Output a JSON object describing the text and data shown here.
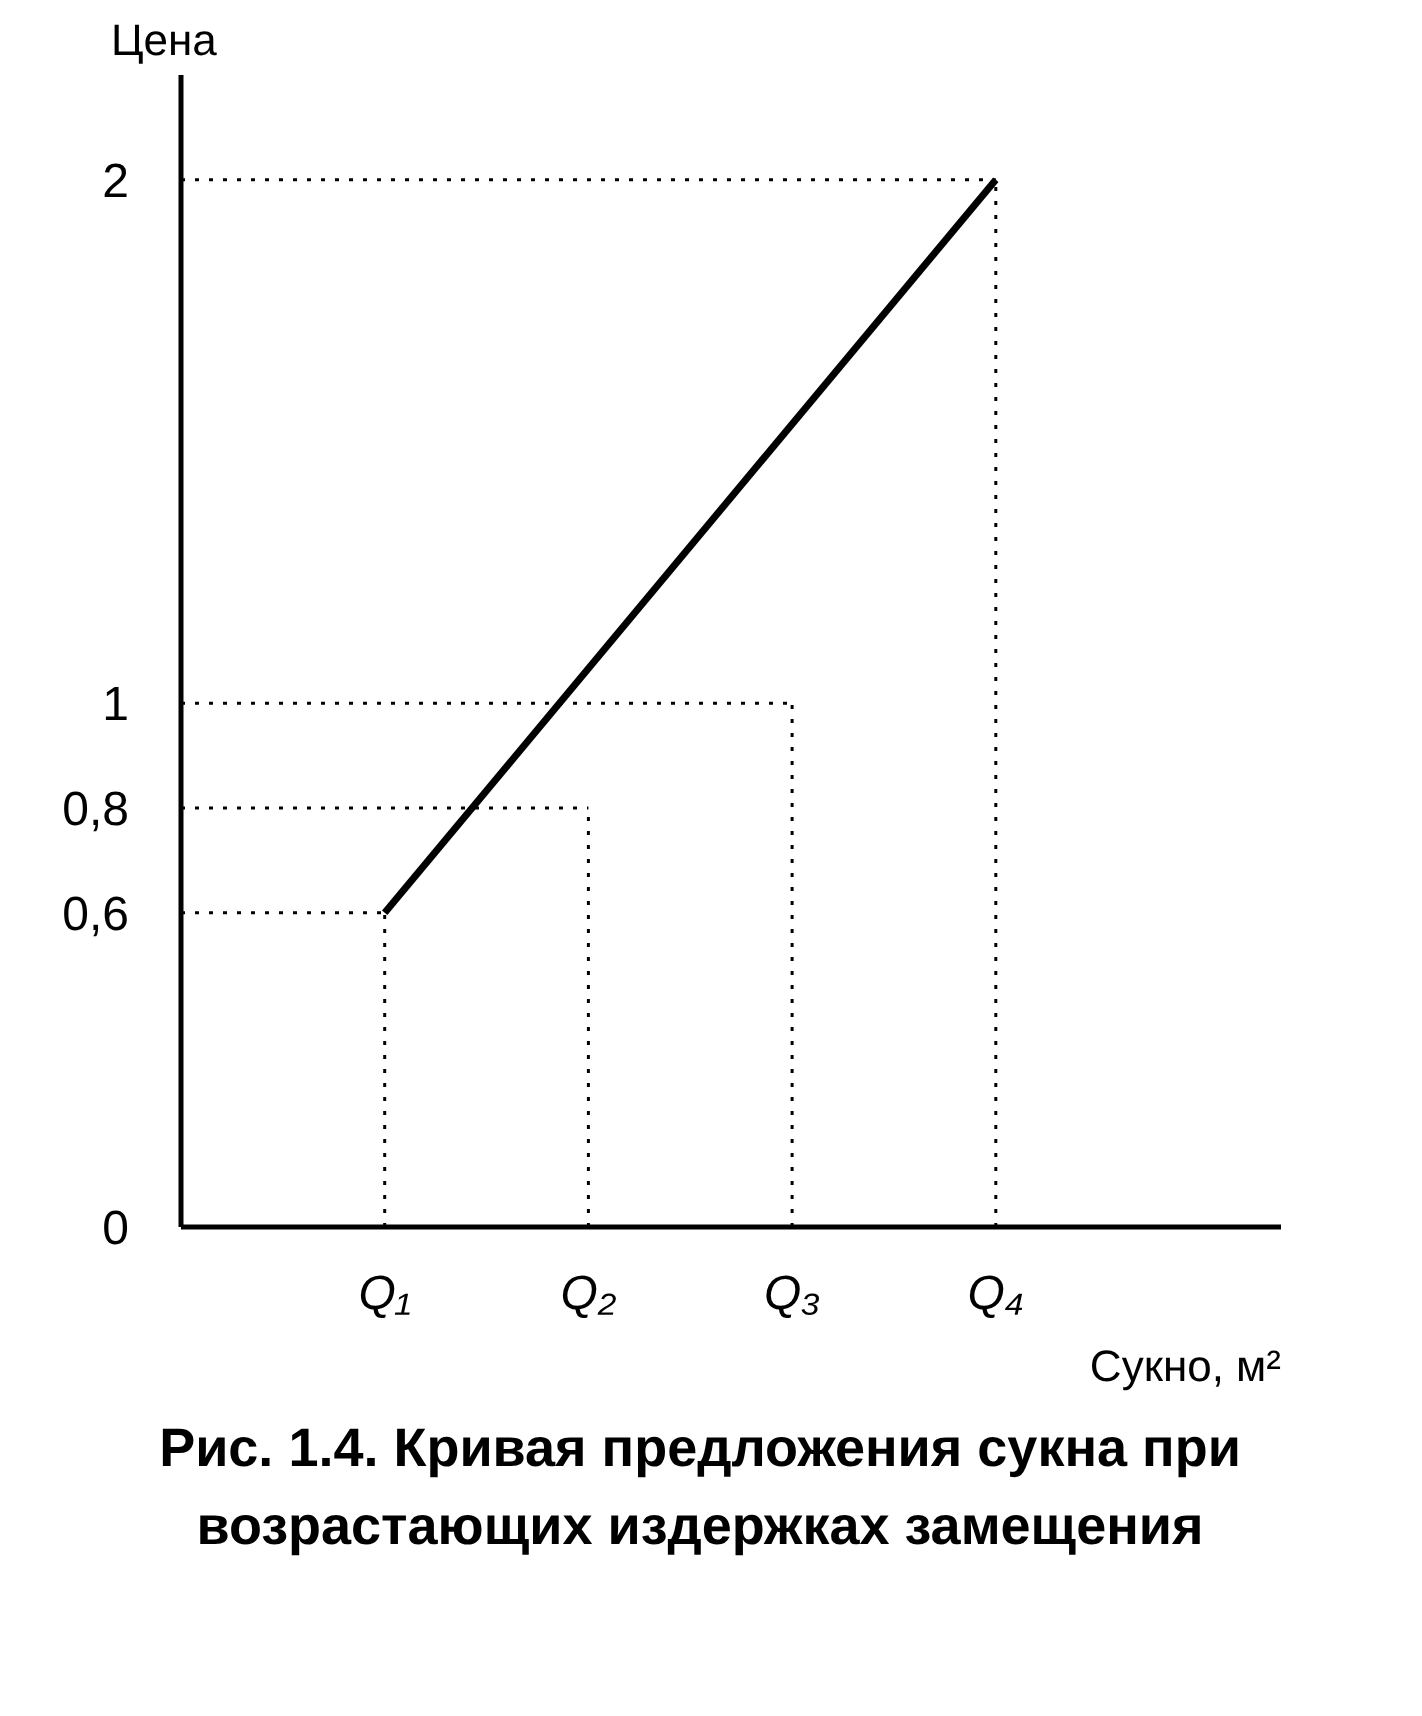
{
  "chart_data": {
    "type": "line",
    "title": "Рис. 1.4. Кривая предложения сукна при возрастающих издержках замещения",
    "xlabel": "Сукно, м²",
    "ylabel": "Цена",
    "categories": [
      null,
      "Q₁",
      "Q₂",
      "Q₃",
      "Q₄"
    ],
    "ylim": [
      0,
      2.2
    ],
    "yticks": [
      0,
      {
        "value": 0.6,
        "label": "0,6"
      },
      {
        "value": 0.8,
        "label": "0,8"
      },
      1,
      2
    ],
    "grid": false,
    "marker": "none",
    "series": [
      {
        "color": "#000000",
        "line_style": "solid",
        "values": [
          null,
          0.6,
          null,
          null,
          2
        ]
      },
      {
        "color": "#000000",
        "line_style": "dotted",
        "values": [
          0.6,
          0.6,
          null,
          null,
          null
        ],
        "errors": [
          null,
          [
            0,
            0.6
          ],
          null,
          null,
          null
        ]
      },
      {
        "color": "#000000",
        "line_style": "dotted",
        "values": [
          0.8,
          null,
          0.8,
          null,
          null
        ],
        "errors": [
          null,
          null,
          [
            0,
            0.8
          ],
          null,
          null
        ]
      },
      {
        "color": "#000000",
        "line_style": "dotted",
        "values": [
          1,
          null,
          null,
          1,
          null
        ],
        "errors": [
          null,
          null,
          null,
          [
            0,
            1
          ],
          null
        ]
      },
      {
        "color": "#000000",
        "line_style": "dotted",
        "values": [
          2,
          null,
          null,
          null,
          2
        ],
        "errors": [
          null,
          null,
          null,
          null,
          [
            0,
            2
          ]
        ]
      }
    ]
  }
}
